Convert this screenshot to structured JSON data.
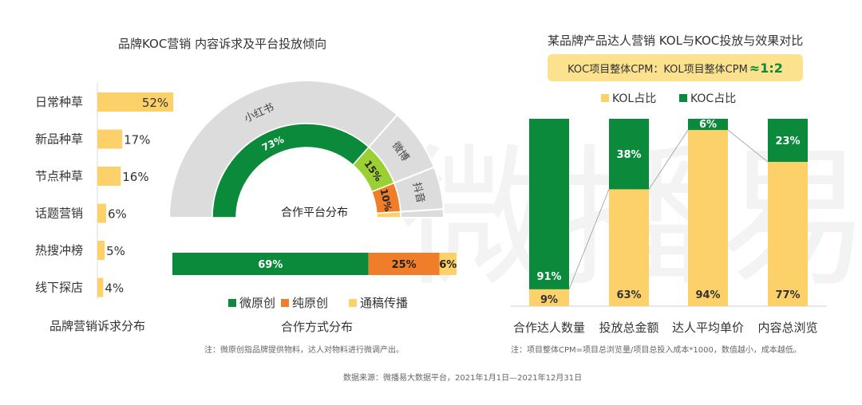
{
  "watermark": "微播易",
  "colors": {
    "green": "#0a8a3a",
    "orange": "#f07d2a",
    "yellow": "#fdd16a",
    "lime": "#9bd034",
    "gray": "#dcdcdc",
    "soft_yellow": "#fce28f"
  },
  "left_panel": {
    "title": "品牌KOC营销 内容诉求及平台投放倾向",
    "demand_caption": "品牌营销诉求分布",
    "method_caption": "合作方式分布",
    "platform_center_label": "合作平台分布",
    "note": "注：微原创指品牌提供物料，达人对物料进行微调产出。"
  },
  "right_panel": {
    "title": "某品牌产品达人营销 KOL与KOC投放与效果对比",
    "cpm_badge": "KOC项目整体CPM：KOL项目整体CPM",
    "cpm_ratio": "≈1:2",
    "note": "注：项目整体CPM=项目总浏览量/项目总投入成本*1000，数值越小，成本越低。"
  },
  "source": "数据来源：微播易大数据平台，2021年1月1日—2021年12月31日",
  "chart_data": [
    {
      "type": "bar",
      "title": "品牌营销诉求分布",
      "orientation": "horizontal",
      "categories": [
        "日常种草",
        "新品种草",
        "节点种草",
        "话题营销",
        "热搜冲榜",
        "线下探店"
      ],
      "values": [
        52,
        17,
        16,
        6,
        5,
        4
      ],
      "value_labels": [
        "52%",
        "17%",
        "16%",
        "6%",
        "5%",
        "4%"
      ],
      "xlim": [
        0,
        100
      ]
    },
    {
      "type": "pie",
      "title": "合作平台分布",
      "variant": "semicircle-donut",
      "labels": [
        "小红书",
        "微博",
        "抖音"
      ],
      "values": [
        73,
        15,
        10
      ],
      "value_labels": [
        "73%",
        "15%",
        "10%"
      ]
    },
    {
      "type": "bar",
      "title": "合作方式分布",
      "orientation": "horizontal-stacked-100",
      "legend": [
        "微原创",
        "纯原创",
        "通稿传播"
      ],
      "values": [
        69,
        25,
        6
      ],
      "value_labels": [
        "69%",
        "25%",
        "6%"
      ],
      "legend_position": "bottom"
    },
    {
      "type": "bar",
      "variant": "stacked-100",
      "categories": [
        "合作达人数量",
        "投放总金额",
        "达人平均单价",
        "内容总浏览"
      ],
      "series": [
        {
          "name": "KOL占比",
          "values": [
            9,
            63,
            94,
            77
          ],
          "labels": [
            "9%",
            "63%",
            "94%",
            "77%"
          ]
        },
        {
          "name": "KOC占比",
          "values": [
            91,
            38,
            6,
            23
          ],
          "labels": [
            "91%",
            "38%",
            "6%",
            "23%"
          ]
        }
      ],
      "legend_position": "top"
    }
  ]
}
